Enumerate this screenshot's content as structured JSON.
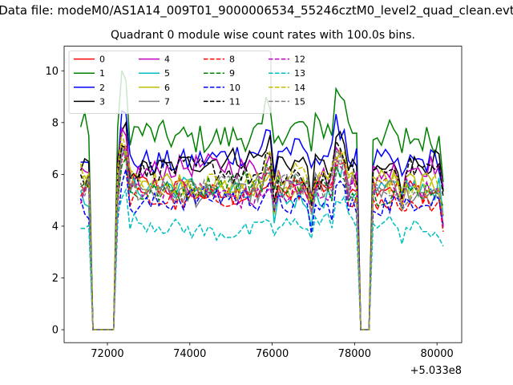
{
  "suptitle": "Data file: modeM0/AS1A14_009T01_9000006534_55246cztM0_level2_quad_clean.evt",
  "title": "Quadrant 0 module wise count rates with 100.0s bins.",
  "chart_data": {
    "type": "line",
    "title": "Quadrant 0 module wise count rates with 100.0s bins.",
    "xlabel": "",
    "ylabel": "",
    "x_offset_label": "+5.033e8",
    "xlim": [
      70950,
      80600
    ],
    "ylim": [
      -0.5,
      10.95
    ],
    "xticks": [
      72000,
      74000,
      76000,
      78000,
      80000
    ],
    "yticks": [
      0,
      2,
      4,
      6,
      8,
      10
    ],
    "legend_position": "upper-left",
    "legend_columns": 4,
    "x_range": [
      71350,
      80150
    ],
    "x_step": 100,
    "gaps": [
      [
        71650,
        72150
      ],
      [
        78150,
        78350
      ]
    ],
    "series": [
      {
        "name": "0",
        "color": "#ff0000",
        "dash": "solid",
        "level": 5.4,
        "amp": 0.45
      },
      {
        "name": "1",
        "color": "#008000",
        "dash": "solid",
        "level": 7.6,
        "amp": 0.6
      },
      {
        "name": "2",
        "color": "#0000ff",
        "dash": "solid",
        "level": 6.7,
        "amp": 0.5
      },
      {
        "name": "3",
        "color": "#000000",
        "dash": "solid",
        "level": 6.4,
        "amp": 0.45
      },
      {
        "name": "4",
        "color": "#bf00bf",
        "dash": "solid",
        "level": 6.1,
        "amp": 0.45
      },
      {
        "name": "5",
        "color": "#00bfbf",
        "dash": "solid",
        "level": 5.3,
        "amp": 0.45
      },
      {
        "name": "6",
        "color": "#bfbf00",
        "dash": "solid",
        "level": 5.6,
        "amp": 0.45
      },
      {
        "name": "7",
        "color": "#808080",
        "dash": "solid",
        "level": 5.4,
        "amp": 0.45
      },
      {
        "name": "8",
        "color": "#ff0000",
        "dash": "dashed",
        "level": 5.2,
        "amp": 0.45
      },
      {
        "name": "9",
        "color": "#008000",
        "dash": "dashed",
        "level": 5.5,
        "amp": 0.45
      },
      {
        "name": "10",
        "color": "#0000ff",
        "dash": "dashed",
        "level": 4.9,
        "amp": 0.45
      },
      {
        "name": "11",
        "color": "#000000",
        "dash": "dashed",
        "level": 6.0,
        "amp": 0.45
      },
      {
        "name": "12",
        "color": "#bf00bf",
        "dash": "dashed",
        "level": 5.3,
        "amp": 0.45
      },
      {
        "name": "13",
        "color": "#00bfbf",
        "dash": "dashed",
        "level": 4.0,
        "amp": 0.35
      },
      {
        "name": "14",
        "color": "#bfbf00",
        "dash": "dashed",
        "level": 5.8,
        "amp": 0.45
      },
      {
        "name": "15",
        "color": "#808080",
        "dash": "dashed",
        "level": 5.5,
        "amp": 0.45
      }
    ]
  }
}
